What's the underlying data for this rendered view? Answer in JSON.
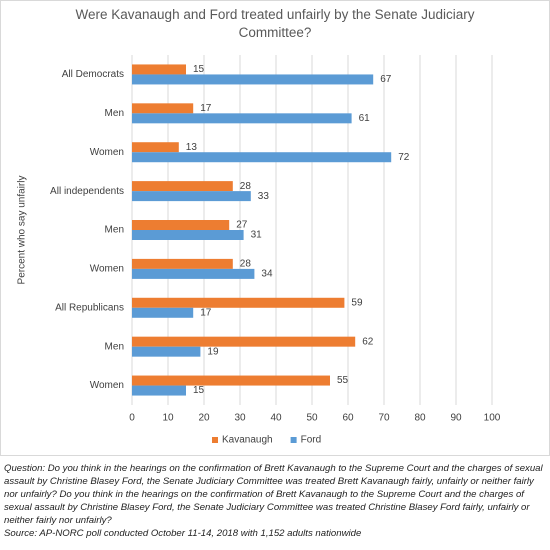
{
  "chart_data": {
    "type": "hbar",
    "title": "Were Kavanaugh and Ford treated unfairly by the Senate Judiciary Committee?",
    "ylabel": "Percent who say unfairly",
    "categories": [
      "All Democrats",
      "Men",
      "Women",
      "All independents",
      "Men",
      "Women",
      "All Republicans",
      "Men",
      "Women"
    ],
    "series": [
      {
        "name": "Kavanaugh",
        "color": "#ed7d31",
        "values": [
          15,
          17,
          13,
          28,
          27,
          28,
          59,
          62,
          55
        ]
      },
      {
        "name": "Ford",
        "color": "#5b9bd5",
        "values": [
          67,
          61,
          72,
          33,
          31,
          34,
          17,
          19,
          15
        ]
      }
    ],
    "xlim": [
      0,
      100
    ],
    "xticks": [
      0,
      10,
      20,
      30,
      40,
      50,
      60,
      70,
      80,
      90,
      100
    ],
    "grid": true,
    "legend": "bottom",
    "note": "Question: Do you think in the hearings on the confirmation of Brett Kavanaugh to the Supreme Court and the charges of sexual assault by Christine Blasey Ford, the Senate Judiciary Committee was treated Brett Kavanaugh fairly, unfairly or neither fairly nor unfairly? Do you think in the hearings on the confirmation of Brett Kavanaugh to the Supreme Court and the charges of sexual assault by Christine Blasey Ford, the Senate Judiciary Committee was treated Christine Blasey Ford fairly, unfairly or neither fairly nor unfairly?",
    "source": "Source: AP-NORC poll conducted October 11-14, 2018 with 1,152 adults nationwide"
  }
}
